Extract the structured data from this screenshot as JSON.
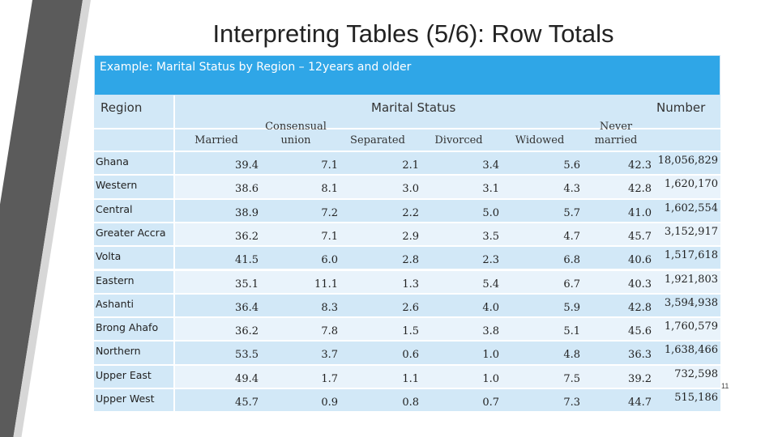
{
  "slide": {
    "title": "Interpreting Tables (5/6): Row Totals",
    "page_number": "11"
  },
  "table": {
    "caption": "Example: Marital Status by Region – 12years and older",
    "headers": {
      "region": "Region",
      "marital_status": "Marital Status",
      "number": "Number",
      "married": "Married",
      "consensual_line1": "Consensual",
      "consensual_line2": "union",
      "separated": "Separated",
      "divorced": "Divorced",
      "widowed": "Widowed",
      "never_line1": "Never",
      "never_line2": "married"
    },
    "rows": [
      {
        "region": "Ghana",
        "married": "39.4",
        "consensual": "7.1",
        "separated": "2.1",
        "divorced": "3.4",
        "widowed": "5.6",
        "never": "42.3",
        "number": "18,056,829"
      },
      {
        "region": "Western",
        "married": "38.6",
        "consensual": "8.1",
        "separated": "3.0",
        "divorced": "3.1",
        "widowed": "4.3",
        "never": "42.8",
        "number": "1,620,170"
      },
      {
        "region": "Central",
        "married": "38.9",
        "consensual": "7.2",
        "separated": "2.2",
        "divorced": "5.0",
        "widowed": "5.7",
        "never": "41.0",
        "number": "1,602,554"
      },
      {
        "region": "Greater Accra",
        "married": "36.2",
        "consensual": "7.1",
        "separated": "2.9",
        "divorced": "3.5",
        "widowed": "4.7",
        "never": "45.7",
        "number": "3,152,917"
      },
      {
        "region": "Volta",
        "married": "41.5",
        "consensual": "6.0",
        "separated": "2.8",
        "divorced": "2.3",
        "widowed": "6.8",
        "never": "40.6",
        "number": "1,517,618"
      },
      {
        "region": "Eastern",
        "married": "35.1",
        "consensual": "11.1",
        "separated": "1.3",
        "divorced": "5.4",
        "widowed": "6.7",
        "never": "40.3",
        "number": "1,921,803"
      },
      {
        "region": "Ashanti",
        "married": "36.4",
        "consensual": "8.3",
        "separated": "2.6",
        "divorced": "4.0",
        "widowed": "5.9",
        "never": "42.8",
        "number": "3,594,938"
      },
      {
        "region": "Brong Ahafo",
        "married": "36.2",
        "consensual": "7.8",
        "separated": "1.5",
        "divorced": "3.8",
        "widowed": "5.1",
        "never": "45.6",
        "number": "1,760,579"
      },
      {
        "region": "Northern",
        "married": "53.5",
        "consensual": "3.7",
        "separated": "0.6",
        "divorced": "1.0",
        "widowed": "4.8",
        "never": "36.3",
        "number": "1,638,466"
      },
      {
        "region": "Upper East",
        "married": "49.4",
        "consensual": "1.7",
        "separated": "1.1",
        "divorced": "1.0",
        "widowed": "7.5",
        "never": "39.2",
        "number": "732,598"
      },
      {
        "region": "Upper West",
        "married": "45.7",
        "consensual": "0.9",
        "separated": "0.8",
        "divorced": "0.7",
        "widowed": "7.3",
        "never": "44.7",
        "number": "515,186"
      }
    ]
  },
  "colors": {
    "header_band": "#2fa6e7",
    "row_light": "#d2e8f7",
    "row_lighter": "#e9f3fb"
  }
}
